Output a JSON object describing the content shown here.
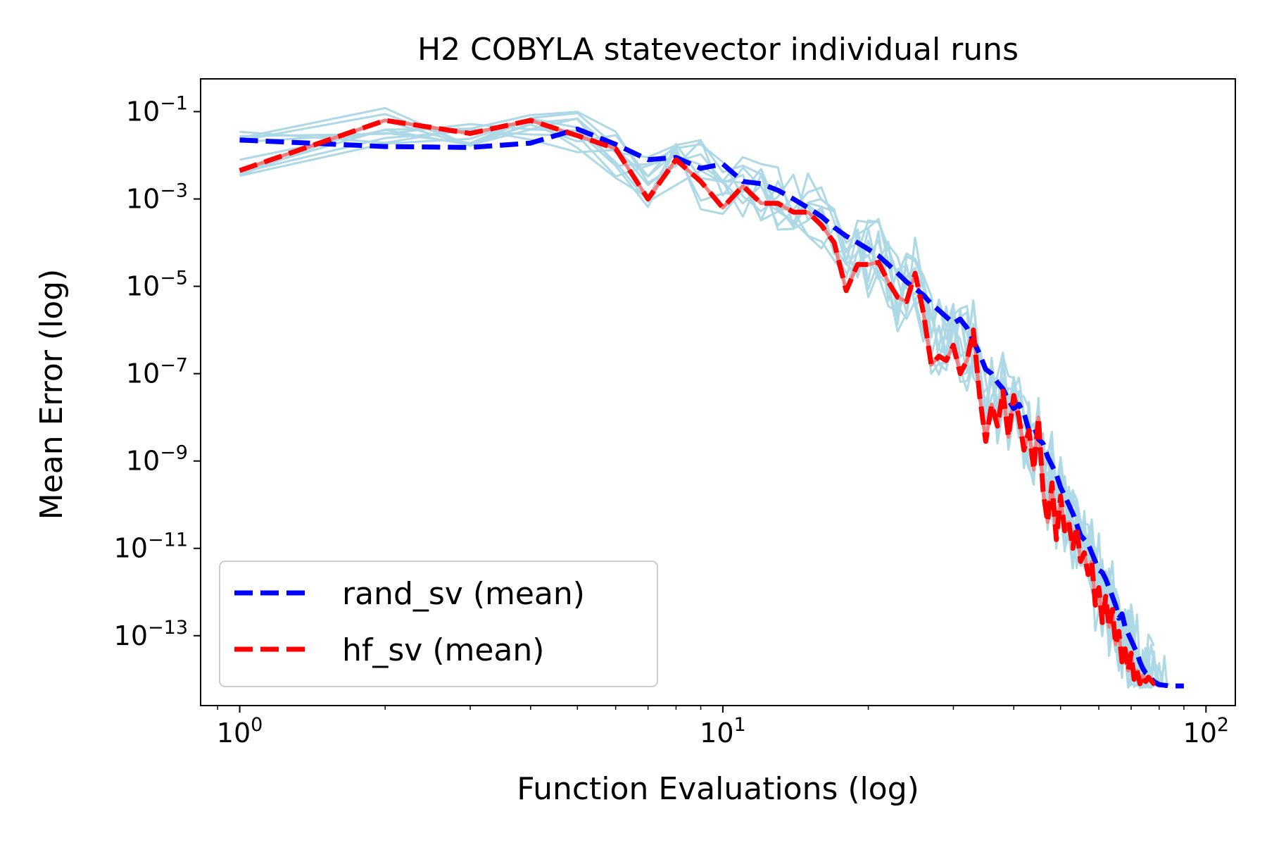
{
  "chart_data": {
    "type": "line",
    "title": "H2 COBYLA statevector individual runs",
    "xlabel": "Function Evaluations (log)",
    "ylabel": "Mean Error (log)",
    "xscale": "log",
    "yscale": "log",
    "xlim": [
      0.83,
      115
    ],
    "ylim_log10": [
      -14.6,
      -0.25
    ],
    "x_ticks": [
      {
        "value": 1,
        "base": "10",
        "exp": "0"
      },
      {
        "value": 10,
        "base": "10",
        "exp": "1"
      },
      {
        "value": 100,
        "base": "10",
        "exp": "2"
      }
    ],
    "y_ticks": [
      {
        "log": -1,
        "base": "10",
        "exp": "−1"
      },
      {
        "log": -3,
        "base": "10",
        "exp": "−3"
      },
      {
        "log": -5,
        "base": "10",
        "exp": "−5"
      },
      {
        "log": -7,
        "base": "10",
        "exp": "−7"
      },
      {
        "log": -9,
        "base": "10",
        "exp": "−9"
      },
      {
        "log": -11,
        "base": "10",
        "exp": "−11"
      },
      {
        "log": -13,
        "base": "10",
        "exp": "−13"
      }
    ],
    "colors": {
      "individual_runs": "#add8e6",
      "rand_sv": "#0000ff",
      "hf_sv": "#ff0000",
      "hf_sv_underlay": "#f08080"
    },
    "legend": {
      "location": "lower-left",
      "entries": [
        {
          "label": "rand_sv (mean)",
          "color": "#0000ff",
          "style": "dashed"
        },
        {
          "label": "hf_sv (mean)",
          "color": "#ff0000",
          "style": "dashed"
        }
      ]
    },
    "series": [
      {
        "name": "rand_sv (mean)",
        "style": "dashed",
        "color": "#0000ff",
        "points": [
          [
            1,
            -1.65
          ],
          [
            2,
            -1.8
          ],
          [
            3,
            -1.82
          ],
          [
            4,
            -1.72
          ],
          [
            5,
            -1.4
          ],
          [
            6,
            -1.75
          ],
          [
            7,
            -2.1
          ],
          [
            8,
            -2.05
          ],
          [
            9,
            -2.3
          ],
          [
            10,
            -2.2
          ],
          [
            11,
            -2.6
          ],
          [
            12,
            -2.65
          ],
          [
            13,
            -2.8
          ],
          [
            14,
            -3.0
          ],
          [
            15,
            -3.2
          ],
          [
            16,
            -3.4
          ],
          [
            17,
            -3.65
          ],
          [
            18,
            -3.85
          ],
          [
            19,
            -4.0
          ],
          [
            20,
            -4.15
          ],
          [
            21,
            -4.3
          ],
          [
            22,
            -4.5
          ],
          [
            23,
            -4.7
          ],
          [
            24,
            -4.9
          ],
          [
            25,
            -5.05
          ],
          [
            26,
            -5.2
          ],
          [
            27,
            -5.4
          ],
          [
            28,
            -5.55
          ],
          [
            29,
            -5.7
          ],
          [
            30,
            -5.85
          ],
          [
            31,
            -5.75
          ],
          [
            32,
            -5.95
          ],
          [
            33,
            -6.25
          ],
          [
            34,
            -6.55
          ],
          [
            35,
            -6.9
          ],
          [
            36,
            -7.0
          ],
          [
            37,
            -7.2
          ],
          [
            38,
            -7.35
          ],
          [
            39,
            -7.6
          ],
          [
            40,
            -7.8
          ],
          [
            41,
            -7.7
          ],
          [
            42,
            -7.9
          ],
          [
            43,
            -8.3
          ],
          [
            44,
            -8.2
          ],
          [
            45,
            -8.5
          ],
          [
            46,
            -8.6
          ],
          [
            47,
            -8.9
          ],
          [
            48,
            -9.1
          ],
          [
            49,
            -9.3
          ],
          [
            50,
            -9.6
          ],
          [
            51,
            -9.8
          ],
          [
            52,
            -10.0
          ],
          [
            53,
            -10.2
          ],
          [
            54,
            -10.45
          ],
          [
            55,
            -10.7
          ],
          [
            56,
            -10.8
          ],
          [
            57,
            -10.9
          ],
          [
            58,
            -11.1
          ],
          [
            59,
            -11.3
          ],
          [
            60,
            -11.5
          ],
          [
            61,
            -11.55
          ],
          [
            62,
            -11.7
          ],
          [
            63,
            -11.9
          ],
          [
            64,
            -12.1
          ],
          [
            65,
            -12.3
          ],
          [
            66,
            -12.6
          ],
          [
            67,
            -12.5
          ],
          [
            68,
            -12.8
          ],
          [
            69,
            -12.95
          ],
          [
            70,
            -13.1
          ],
          [
            71,
            -13.25
          ],
          [
            72,
            -13.4
          ],
          [
            73,
            -13.6
          ],
          [
            74,
            -13.75
          ],
          [
            75,
            -13.85
          ],
          [
            76,
            -13.9
          ],
          [
            78,
            -14.05
          ],
          [
            80,
            -14.12
          ],
          [
            84,
            -14.15
          ],
          [
            90,
            -14.15
          ]
        ]
      },
      {
        "name": "hf_sv (mean)",
        "style": "dashed",
        "color": "#ff0000",
        "points": [
          [
            1,
            -2.35
          ],
          [
            2,
            -1.2
          ],
          [
            3,
            -1.5
          ],
          [
            4,
            -1.2
          ],
          [
            5,
            -1.55
          ],
          [
            6,
            -1.85
          ],
          [
            7,
            -3.0
          ],
          [
            8,
            -2.1
          ],
          [
            9,
            -2.6
          ],
          [
            10,
            -3.2
          ],
          [
            11,
            -2.7
          ],
          [
            12,
            -3.1
          ],
          [
            13,
            -3.1
          ],
          [
            14,
            -3.3
          ],
          [
            15,
            -3.3
          ],
          [
            16,
            -3.6
          ],
          [
            17,
            -4.0
          ],
          [
            18,
            -5.1
          ],
          [
            19,
            -4.5
          ],
          [
            20,
            -4.5
          ],
          [
            21,
            -4.45
          ],
          [
            22,
            -4.9
          ],
          [
            23,
            -5.25
          ],
          [
            24,
            -5.35
          ],
          [
            25,
            -4.7
          ],
          [
            26,
            -5.6
          ],
          [
            27,
            -6.8
          ],
          [
            28,
            -6.6
          ],
          [
            29,
            -6.7
          ],
          [
            30,
            -6.35
          ],
          [
            31,
            -7.0
          ],
          [
            32,
            -6.7
          ],
          [
            33,
            -6.0
          ],
          [
            34,
            -7.5
          ],
          [
            35,
            -8.55
          ],
          [
            36,
            -7.7
          ],
          [
            37,
            -8.2
          ],
          [
            38,
            -7.4
          ],
          [
            39,
            -8.45
          ],
          [
            40,
            -7.5
          ],
          [
            41,
            -8.0
          ],
          [
            42,
            -8.75
          ],
          [
            43,
            -8.3
          ],
          [
            44,
            -9.2
          ],
          [
            45,
            -8.0
          ],
          [
            46,
            -9.7
          ],
          [
            47,
            -10.4
          ],
          [
            48,
            -9.5
          ],
          [
            49,
            -10.8
          ],
          [
            50,
            -9.8
          ],
          [
            51,
            -10.6
          ],
          [
            52,
            -10.4
          ],
          [
            53,
            -11.0
          ],
          [
            54,
            -10.5
          ],
          [
            55,
            -11.3
          ],
          [
            56,
            -11.1
          ],
          [
            57,
            -11.6
          ],
          [
            58,
            -11.3
          ],
          [
            59,
            -12.3
          ],
          [
            60,
            -11.9
          ],
          [
            61,
            -12.7
          ],
          [
            62,
            -12.1
          ],
          [
            63,
            -12.8
          ],
          [
            64,
            -12.4
          ],
          [
            65,
            -13.2
          ],
          [
            66,
            -12.9
          ],
          [
            67,
            -13.6
          ],
          [
            68,
            -13.3
          ],
          [
            69,
            -13.8
          ],
          [
            70,
            -13.4
          ],
          [
            71,
            -14.0
          ],
          [
            72,
            -13.8
          ],
          [
            73,
            -14.1
          ],
          [
            74,
            -13.9
          ],
          [
            75,
            -14.05
          ],
          [
            76,
            -13.95
          ],
          [
            78,
            -14.1
          ],
          [
            80,
            -14.15
          ]
        ]
      }
    ],
    "individual_runs_note": "ten light-blue individual runs spread around the two mean curves"
  }
}
